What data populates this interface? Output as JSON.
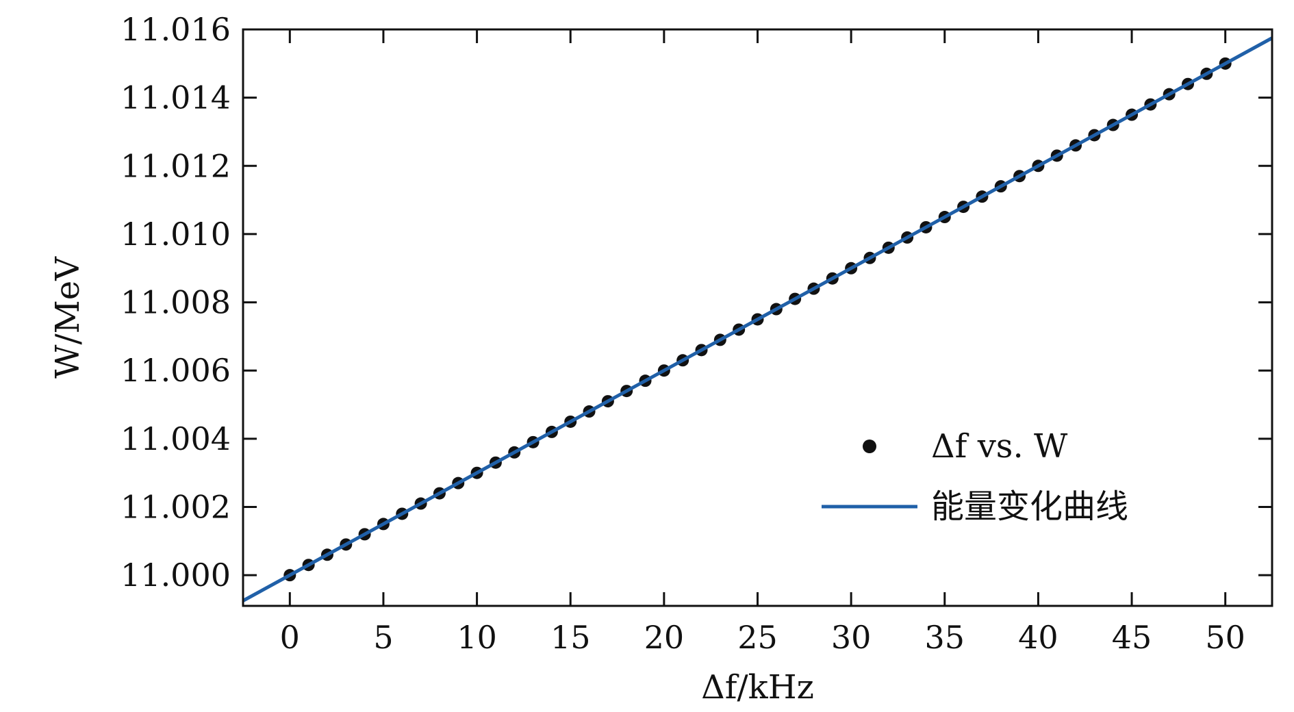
{
  "chart_data": {
    "type": "scatter",
    "xlabel": "Δf/kHz",
    "ylabel": "W/MeV",
    "xlim": [
      -2.5,
      52.5
    ],
    "ylim": [
      10.9991,
      11.016
    ],
    "xticks": [
      0,
      5,
      10,
      15,
      20,
      25,
      30,
      35,
      40,
      45,
      50
    ],
    "yticks": [
      11.0,
      11.002,
      11.004,
      11.006,
      11.008,
      11.01,
      11.012,
      11.014,
      11.016
    ],
    "ytick_labels": [
      "11.000",
      "11.002",
      "11.004",
      "11.006",
      "11.008",
      "11.010",
      "11.012",
      "11.014",
      "11.016"
    ],
    "grid": false,
    "legend_position": "bottom-right",
    "series": [
      {
        "name": "Δf vs. W",
        "kind": "scatter",
        "color": "#111111",
        "x": [
          0,
          1,
          2,
          3,
          4,
          5,
          6,
          7,
          8,
          9,
          10,
          11,
          12,
          13,
          14,
          15,
          16,
          17,
          18,
          19,
          20,
          21,
          22,
          23,
          24,
          25,
          26,
          27,
          28,
          29,
          30,
          31,
          32,
          33,
          34,
          35,
          36,
          37,
          38,
          39,
          40,
          41,
          42,
          43,
          44,
          45,
          46,
          47,
          48,
          49,
          50
        ],
        "y": [
          11.0,
          11.0003,
          11.0006,
          11.0009,
          11.0012,
          11.0015,
          11.0018,
          11.0021,
          11.0024,
          11.0027,
          11.003,
          11.0033,
          11.0036,
          11.0039,
          11.0042,
          11.0045,
          11.0048,
          11.0051,
          11.0054,
          11.0057,
          11.006,
          11.0063,
          11.0066,
          11.0069,
          11.0072,
          11.0075,
          11.0078,
          11.0081,
          11.0084,
          11.0087,
          11.009,
          11.0093,
          11.0096,
          11.0099,
          11.0102,
          11.0105,
          11.0108,
          11.0111,
          11.0114,
          11.0117,
          11.012,
          11.0123,
          11.0126,
          11.0129,
          11.0132,
          11.0135,
          11.0138,
          11.0141,
          11.0144,
          11.0147,
          11.015
        ]
      },
      {
        "name": "能量变化曲线",
        "kind": "line",
        "color": "#2060a8",
        "x": [
          -2.5,
          52.5
        ],
        "y": [
          10.99925,
          11.01575
        ]
      }
    ]
  }
}
